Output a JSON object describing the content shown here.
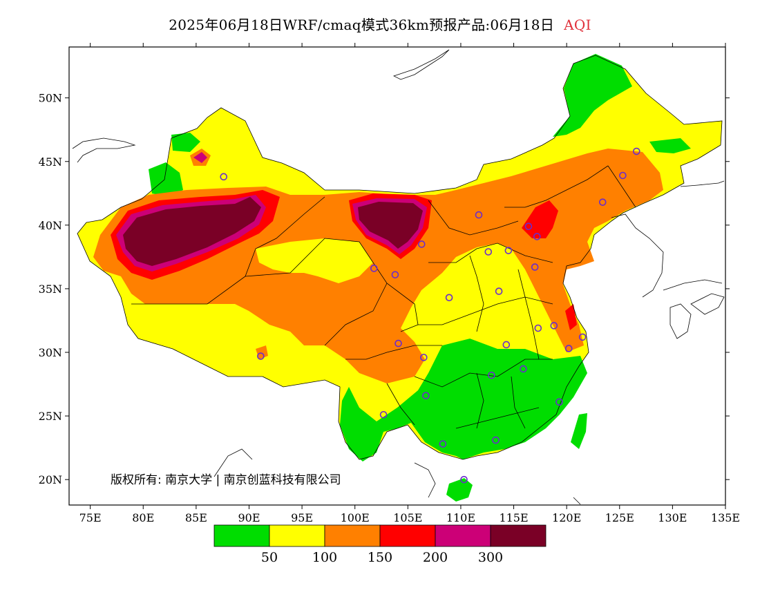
{
  "title": {
    "main": "2025年06月18日WRF/cmaq模式36km预报产品:06月18日",
    "variable": "AQI"
  },
  "map": {
    "lon_range": [
      73,
      135
    ],
    "lat_range": [
      18,
      54
    ],
    "lon_ticks": [
      "75E",
      "80E",
      "85E",
      "90E",
      "95E",
      "100E",
      "105E",
      "110E",
      "115E",
      "120E",
      "125E",
      "130E",
      "135E"
    ],
    "lat_ticks": [
      "20N",
      "25N",
      "30N",
      "35N",
      "40N",
      "45N",
      "50N"
    ],
    "copyright": "版权所有: 南京大学 | 南京创蓝科技有限公司"
  },
  "legend": {
    "colors": [
      "#00dd00",
      "#ffff00",
      "#ff8000",
      "#ff0000",
      "#cc0077",
      "#7a0026"
    ],
    "labels": [
      "50",
      "100",
      "150",
      "200",
      "300"
    ]
  },
  "city_markers": [
    [
      87.6,
      43.8
    ],
    [
      91.1,
      29.7
    ],
    [
      101.8,
      36.6
    ],
    [
      103.8,
      36.1
    ],
    [
      106.3,
      38.5
    ],
    [
      111.7,
      40.8
    ],
    [
      112.6,
      37.9
    ],
    [
      114.5,
      38.0
    ],
    [
      117.2,
      39.1
    ],
    [
      116.4,
      39.9
    ],
    [
      117.0,
      36.7
    ],
    [
      113.6,
      34.8
    ],
    [
      108.9,
      34.3
    ],
    [
      104.1,
      30.7
    ],
    [
      106.5,
      29.6
    ],
    [
      114.3,
      30.6
    ],
    [
      117.3,
      31.9
    ],
    [
      118.8,
      32.1
    ],
    [
      120.2,
      30.3
    ],
    [
      121.5,
      31.2
    ],
    [
      115.9,
      28.7
    ],
    [
      112.9,
      28.2
    ],
    [
      106.7,
      26.6
    ],
    [
      102.7,
      25.1
    ],
    [
      108.3,
      22.8
    ],
    [
      113.3,
      23.1
    ],
    [
      110.3,
      20.0
    ],
    [
      119.3,
      26.1
    ],
    [
      123.4,
      41.8
    ],
    [
      125.3,
      43.9
    ],
    [
      126.6,
      45.8
    ]
  ],
  "colors": {
    "marker": "#6a2ccc",
    "title_accent": "#e0303a"
  }
}
